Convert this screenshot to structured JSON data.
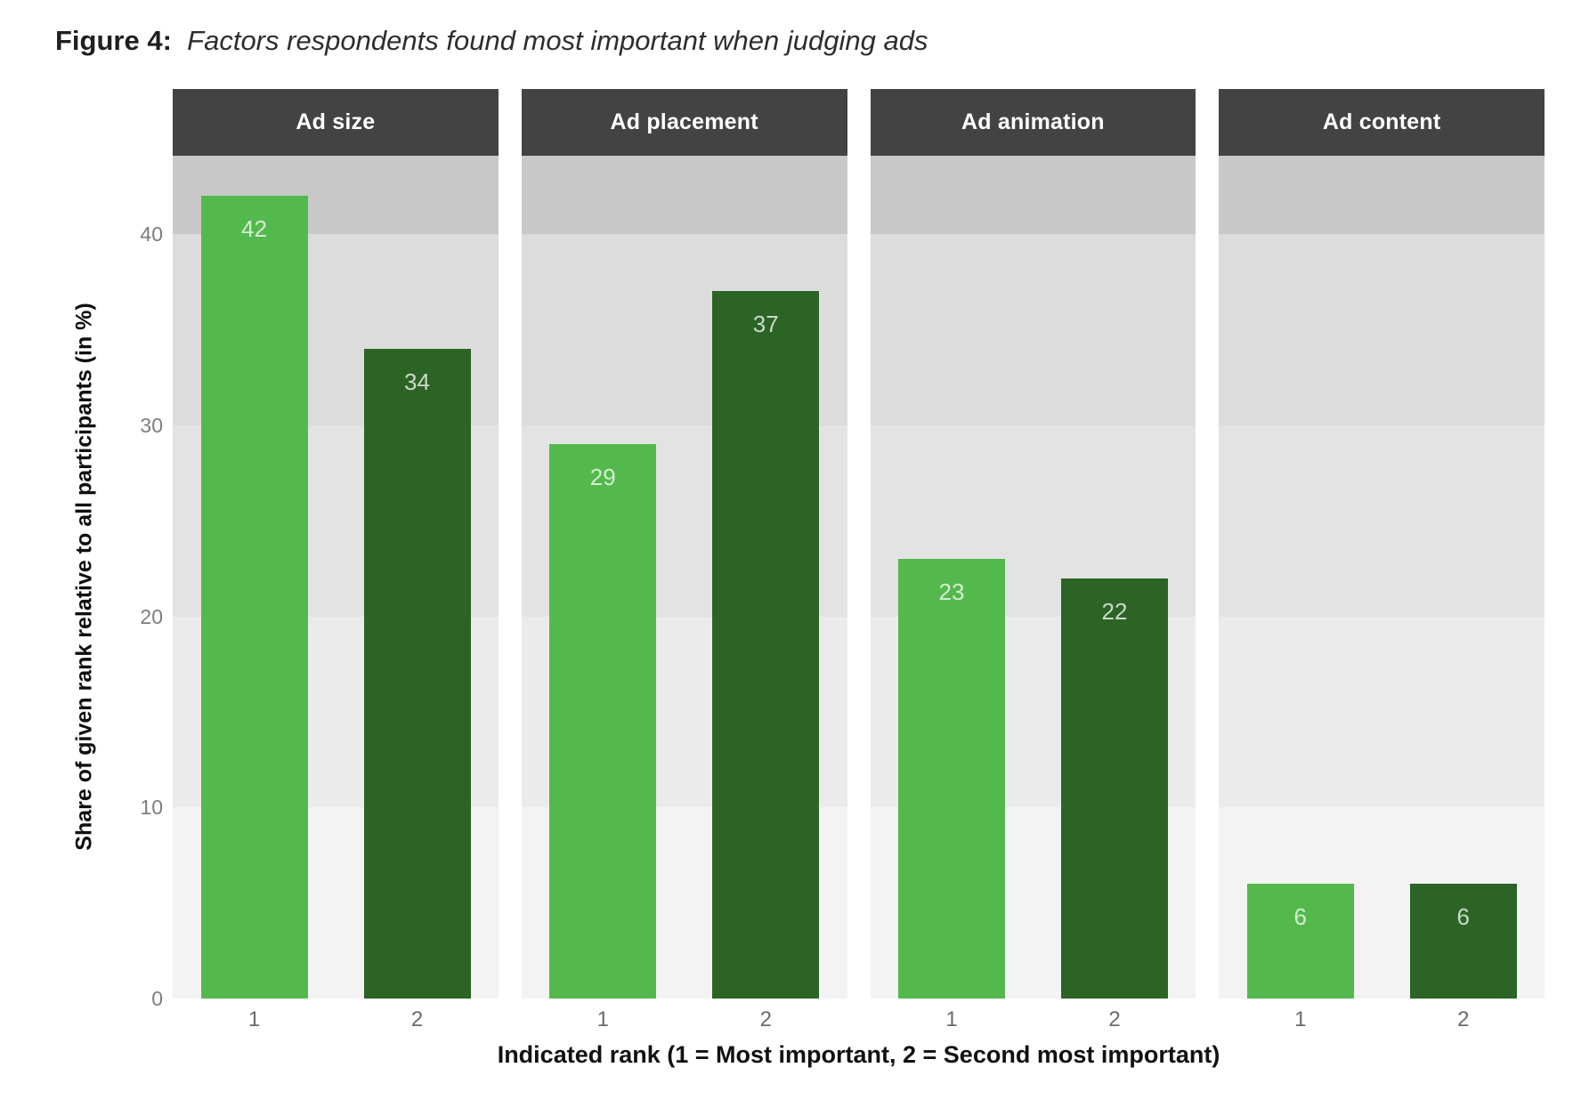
{
  "title": {
    "prefix": "Figure 4:",
    "text": "Factors respondents found most important when judging ads"
  },
  "y_axis": {
    "label": "Share of given rank relative to all participants (in %)",
    "ticks": [
      40,
      30,
      20,
      10,
      0
    ]
  },
  "x_axis": {
    "label": "Indicated rank (1 = Most important, 2 = Second most important)",
    "tick_labels": [
      "1",
      "2"
    ]
  },
  "colors": {
    "rank1_bar": "#54b94d",
    "rank2_bar": "#2b6425",
    "bar_value_label": "rgba(255,255,255,0.75)",
    "facet_header_bg": "#434343",
    "facet_header_text": "#ffffff",
    "background_bands_bottom_to_top": [
      "#f3f3f3",
      "#ebebeb",
      "#e3e3e3",
      "#dcdcdc",
      "#c8c8c8"
    ]
  },
  "chart_data": {
    "type": "bar",
    "faceted": true,
    "facets": [
      "Ad size",
      "Ad placement",
      "Ad animation",
      "Ad content"
    ],
    "categories": [
      "1",
      "2"
    ],
    "series": [
      {
        "name": "Rank 1 (light green)",
        "values": [
          42,
          29,
          23,
          6
        ]
      },
      {
        "name": "Rank 2 (dark green)",
        "values": [
          34,
          37,
          22,
          6
        ]
      }
    ],
    "title": "Figure 4: Factors respondents found most important when judging ads",
    "xlabel": "Indicated rank (1 = Most important, 2 = Second most important)",
    "ylabel": "Share of given rank relative to all participants (in %)",
    "ylim": [
      0,
      44.1
    ],
    "band_boundaries": [
      0,
      10,
      20,
      30,
      40,
      44.1
    ],
    "grid": "shaded horizontal bands at 10-unit intervals, no gridlines",
    "legend": "none",
    "bar_value_labels_shown": true
  }
}
